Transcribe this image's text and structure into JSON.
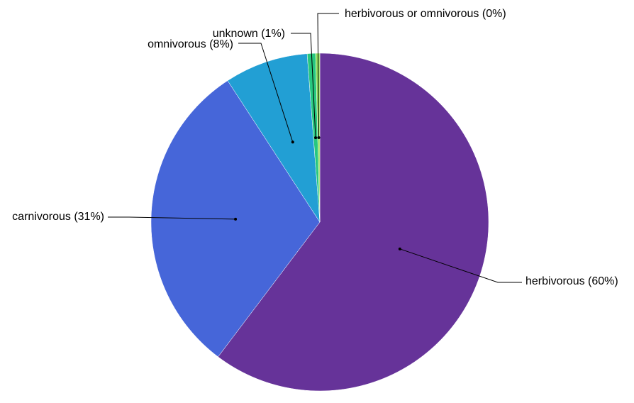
{
  "chart_data": {
    "type": "pie",
    "title": "",
    "start_angle_deg": 0,
    "direction": "clockwise",
    "slices": [
      {
        "label": "herbivorous (60%)",
        "category": "herbivorous",
        "value": 60.3,
        "color": "#663399"
      },
      {
        "label": "carnivorous (31%)",
        "category": "carnivorous",
        "value": 30.5,
        "color": "#4666d9"
      },
      {
        "label": "omnivorous (8%)",
        "category": "omnivorous",
        "value": 8.0,
        "color": "#229fd4"
      },
      {
        "label": "unknown (1%)",
        "category": "unknown",
        "value": 0.8,
        "color": "#27c77f"
      },
      {
        "label": "herbivorous or omnivorous (0%)",
        "category": "herbivorous or omnivorous",
        "value": 0.4,
        "color": "#8fe05b"
      }
    ]
  }
}
